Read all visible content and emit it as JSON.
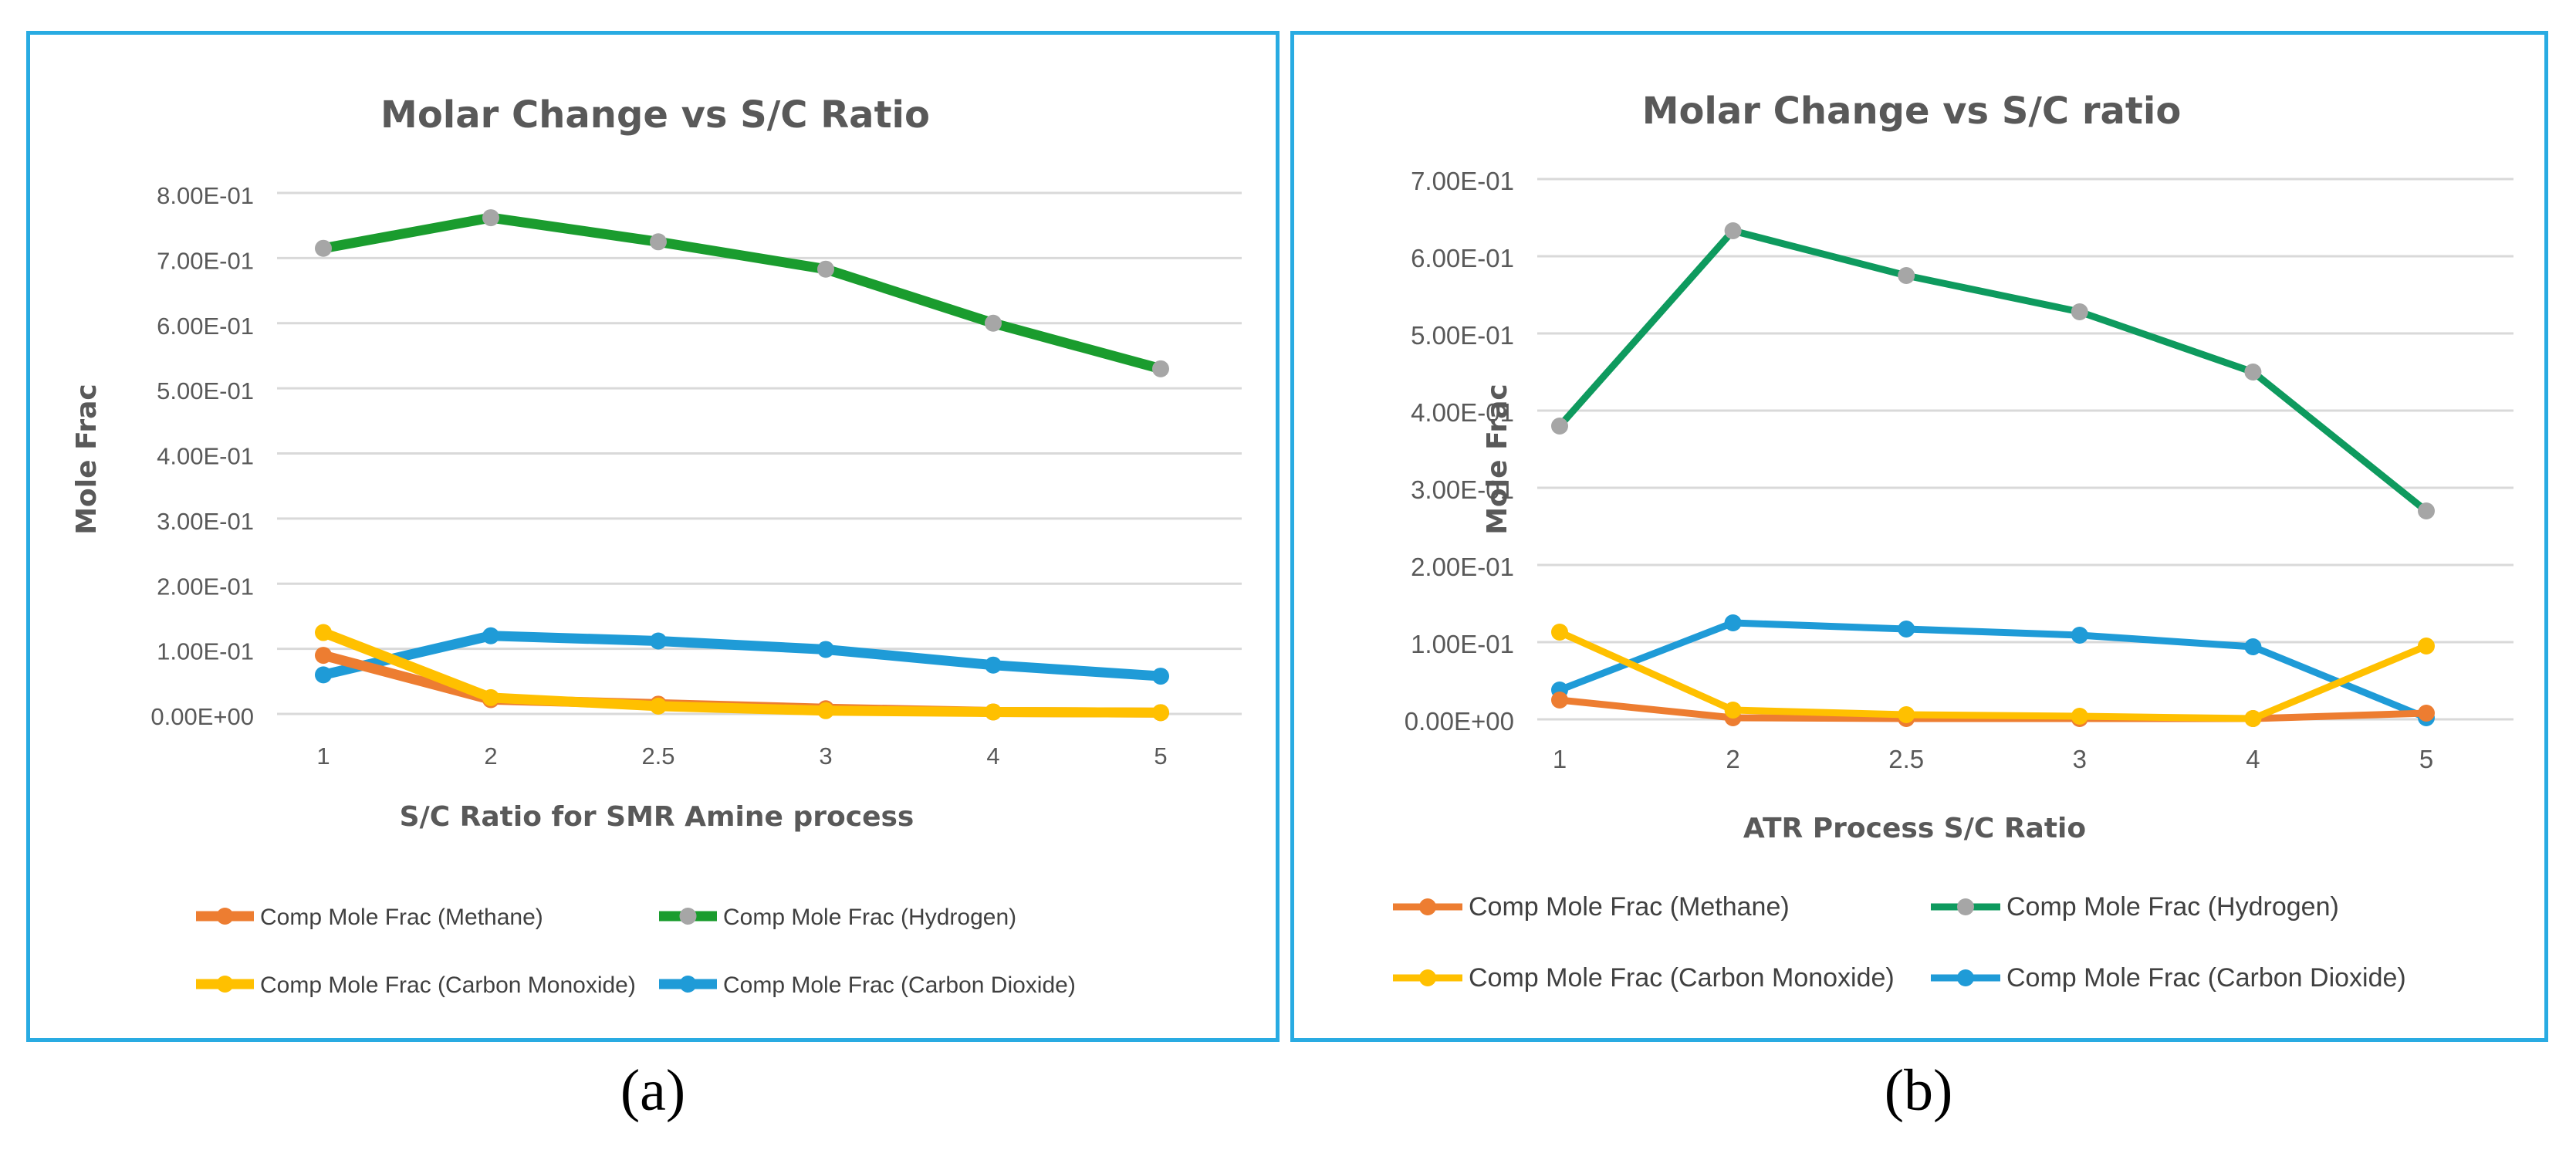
{
  "chart_data": [
    {
      "type": "line",
      "title": "Molar Change vs S/C Ratio",
      "xlabel": "S/C Ratio for SMR Amine process",
      "ylabel": "Mole Frac",
      "categories": [
        "1",
        "2",
        "2.5",
        "3",
        "4",
        "5"
      ],
      "yticks": [
        "0.00E+00",
        "1.00E-01",
        "2.00E-01",
        "3.00E-01",
        "4.00E-01",
        "5.00E-01",
        "6.00E-01",
        "7.00E-01",
        "8.00E-01"
      ],
      "ylim": [
        0,
        0.8
      ],
      "grid": true,
      "legend_position": "bottom",
      "sublabel": "(a)",
      "series": [
        {
          "name": "Comp Mole Frac (Methane)",
          "color": "#ed7d31",
          "marker_color": "#ed7d31",
          "values": [
            0.09,
            0.022,
            0.015,
            0.008,
            0.003,
            0.002
          ]
        },
        {
          "name": "Comp Mole Frac (Hydrogen)",
          "color": "#1a9c2e",
          "marker_color": "#a6a6a6",
          "values": [
            0.715,
            0.762,
            0.725,
            0.683,
            0.6,
            0.53
          ]
        },
        {
          "name": "Comp Mole Frac (Carbon Monoxide)",
          "color": "#ffc000",
          "marker_color": "#ffc000",
          "values": [
            0.125,
            0.025,
            0.012,
            0.005,
            0.003,
            0.002
          ]
        },
        {
          "name": "Comp Mole Frac (Carbon Dioxide)",
          "color": "#1f9bd7",
          "marker_color": "#1f9bd7",
          "values": [
            0.06,
            0.12,
            0.112,
            0.099,
            0.075,
            0.058
          ]
        }
      ]
    },
    {
      "type": "line",
      "title": "Molar Change vs S/C ratio",
      "xlabel": "ATR Process S/C Ratio",
      "ylabel": "Mole Frac",
      "categories": [
        "1",
        "2",
        "2.5",
        "3",
        "4",
        "5"
      ],
      "yticks": [
        "0.00E+00",
        "1.00E-01",
        "2.00E-01",
        "3.00E-01",
        "4.00E-01",
        "5.00E-01",
        "6.00E-01",
        "7.00E-01"
      ],
      "ylim": [
        0,
        0.7
      ],
      "grid": true,
      "legend_position": "bottom",
      "sublabel": "(b)",
      "series": [
        {
          "name": "Comp Mole Frac (Methane)",
          "color": "#ed7d31",
          "marker_color": "#ed7d31",
          "values": [
            0.025,
            0.002,
            0.001,
            0.001,
            0.001,
            0.008
          ]
        },
        {
          "name": "Comp Mole Frac (Hydrogen)",
          "color": "#0e9a5e",
          "marker_color": "#a6a6a6",
          "values": [
            0.38,
            0.633,
            0.575,
            0.528,
            0.45,
            0.27
          ]
        },
        {
          "name": "Comp Mole Frac (Carbon Monoxide)",
          "color": "#ffc000",
          "marker_color": "#ffc000",
          "values": [
            0.113,
            0.012,
            0.006,
            0.004,
            0.001,
            0.095
          ]
        },
        {
          "name": "Comp Mole Frac (Carbon Dioxide)",
          "color": "#1f9bd7",
          "marker_color": "#1f9bd7",
          "values": [
            0.038,
            0.125,
            0.117,
            0.109,
            0.094,
            0.002
          ]
        }
      ]
    }
  ]
}
